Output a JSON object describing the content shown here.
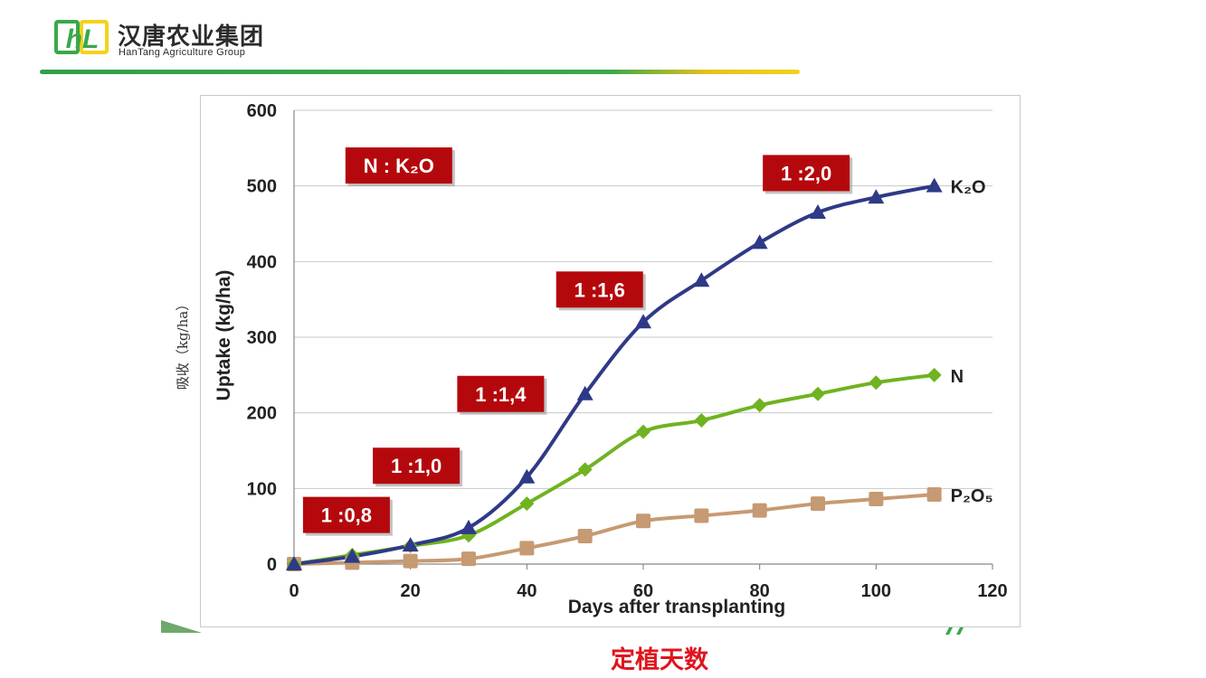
{
  "header": {
    "logo_text": "hL",
    "company_name_cn": "汉唐农业集团",
    "company_name_en": "HanTang Agriculture Group",
    "colors": {
      "green": "#3aa84a",
      "yellow": "#f4d11c"
    }
  },
  "chart_data": {
    "type": "line",
    "x": [
      0,
      10,
      20,
      30,
      40,
      50,
      60,
      70,
      80,
      90,
      100,
      110
    ],
    "xlabel": "Days after transplanting",
    "ylabel": "Uptake (kg/ha)",
    "ylabel_cn": "吸收（kg/ha）",
    "xlim": [
      0,
      120
    ],
    "ylim": [
      0,
      600
    ],
    "x_ticks": [
      0,
      20,
      40,
      60,
      80,
      100,
      120
    ],
    "y_ticks": [
      0,
      100,
      200,
      300,
      400,
      500,
      600
    ],
    "grid": "horizontal",
    "series": [
      {
        "name": "K₂O",
        "color": "#2e3a87",
        "marker": "triangle",
        "values": [
          0,
          10,
          25,
          48,
          115,
          225,
          320,
          375,
          425,
          465,
          485,
          500
        ]
      },
      {
        "name": "N",
        "color": "#6fb320",
        "marker": "diamond",
        "values": [
          0,
          12,
          24,
          38,
          80,
          125,
          175,
          190,
          210,
          225,
          240,
          250
        ]
      },
      {
        "name": "P₂O₅",
        "color": "#c69a72",
        "marker": "square",
        "values": [
          0,
          2,
          4,
          7,
          21,
          37,
          57,
          64,
          71,
          80,
          86,
          92
        ]
      }
    ],
    "annotations": [
      {
        "text": "N : K₂O",
        "x": 18,
        "y": 527
      },
      {
        "text": "1 :0,8",
        "x": 9,
        "y": 65
      },
      {
        "text": "1 :1,0",
        "x": 21,
        "y": 130
      },
      {
        "text": "1 :1,4",
        "x": 35.5,
        "y": 225
      },
      {
        "text": "1 :1,6",
        "x": 52.5,
        "y": 363
      },
      {
        "text": "1 :2,0",
        "x": 88,
        "y": 517
      }
    ],
    "annotation_color": "#b5080c",
    "footer_label": "定植天数"
  }
}
